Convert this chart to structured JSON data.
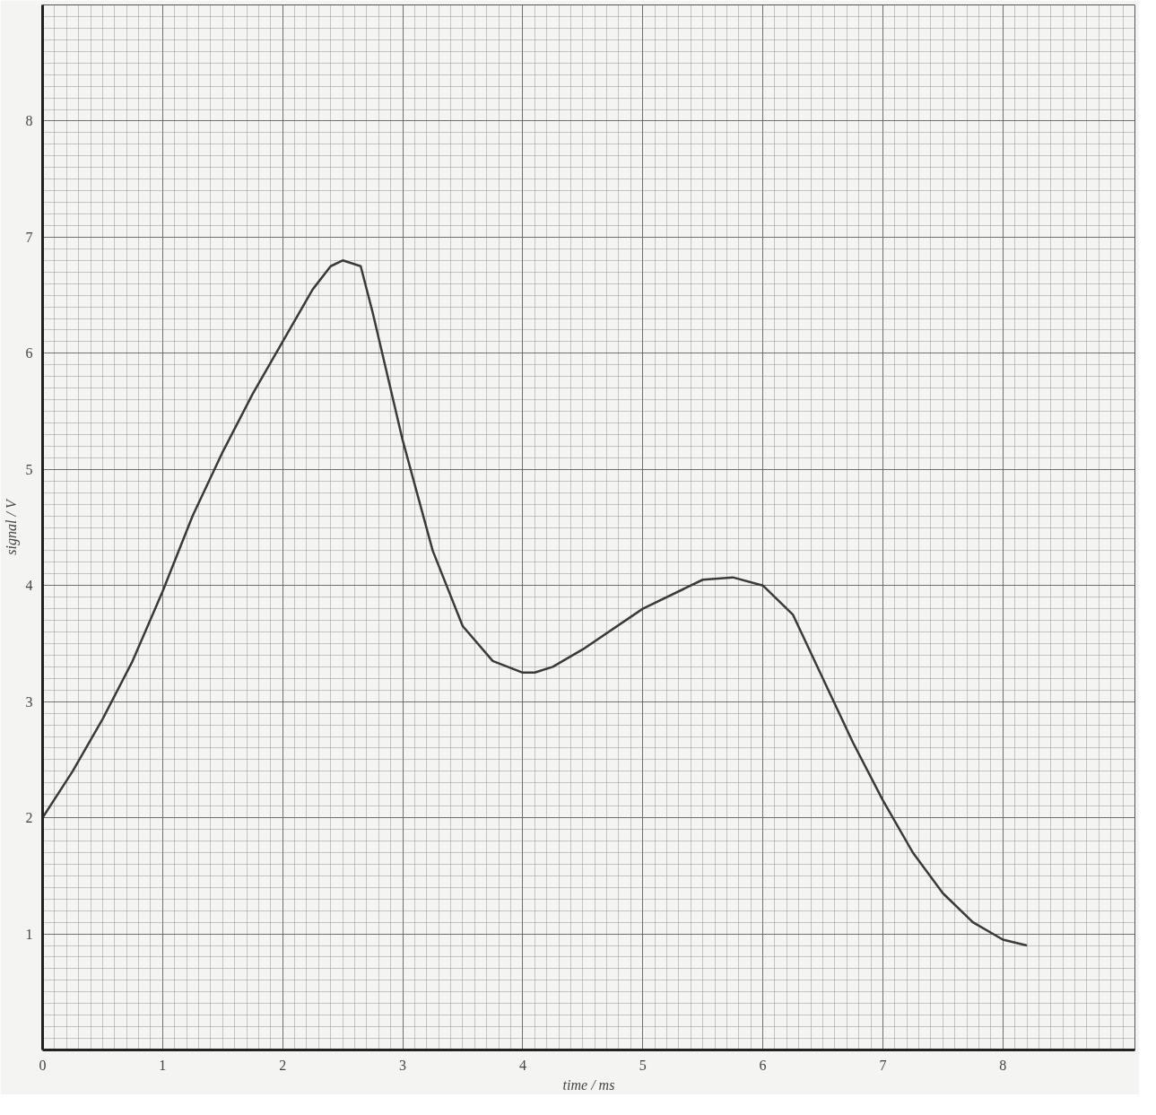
{
  "chart_data": {
    "type": "line",
    "xlabel": "time / ms",
    "ylabel": "signal / V",
    "xlim": [
      0,
      9.1
    ],
    "ylim": [
      0,
      9.0
    ],
    "xticks": [
      0,
      1,
      2,
      3,
      4,
      5,
      6,
      7,
      8
    ],
    "yticks": [
      1,
      2,
      3,
      4,
      5,
      6,
      7,
      8
    ],
    "grid": true,
    "line_style": "solid",
    "series": [
      {
        "color": "#3a3a3a",
        "x": [
          0,
          0.25,
          0.5,
          0.75,
          1,
          1.25,
          1.5,
          1.75,
          2,
          2.25,
          2.4,
          2.5,
          2.65,
          2.75,
          3,
          3.25,
          3.5,
          3.75,
          4,
          4.1,
          4.25,
          4.5,
          5,
          5.5,
          5.75,
          6,
          6.25,
          6.5,
          6.75,
          7,
          7.25,
          7.5,
          7.75,
          8,
          8.2
        ],
        "values": [
          2.0,
          2.4,
          2.85,
          3.35,
          3.95,
          4.6,
          5.15,
          5.65,
          6.1,
          6.55,
          6.75,
          6.8,
          6.75,
          6.35,
          5.25,
          4.3,
          3.65,
          3.35,
          3.25,
          3.25,
          3.3,
          3.45,
          3.8,
          4.05,
          4.07,
          4.0,
          3.75,
          3.2,
          2.65,
          2.15,
          1.7,
          1.35,
          1.1,
          0.95,
          0.9
        ]
      }
    ]
  }
}
